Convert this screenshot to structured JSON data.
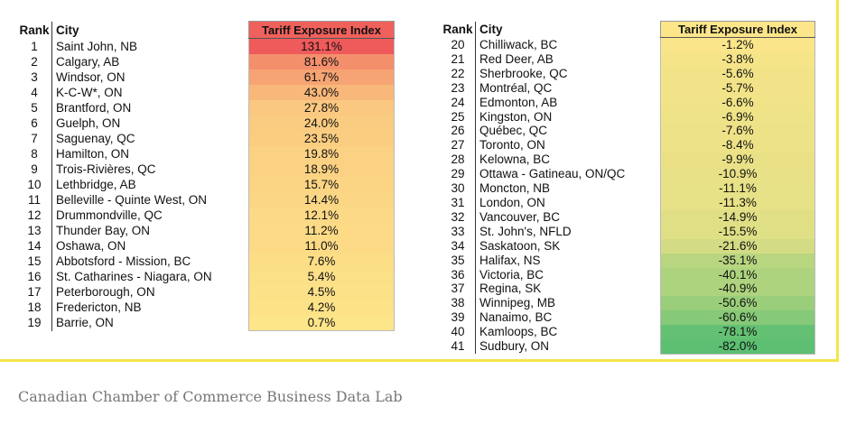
{
  "chart_data": {
    "type": "table",
    "columns": [
      "Rank",
      "City",
      "Tariff Exposure Index"
    ],
    "rows": [
      {
        "rank": "1",
        "city": "Saint John, NB",
        "index": "131.1%",
        "value": 131.1
      },
      {
        "rank": "2",
        "city": "Calgary, AB",
        "index": "81.6%",
        "value": 81.6
      },
      {
        "rank": "3",
        "city": "Windsor, ON",
        "index": "61.7%",
        "value": 61.7
      },
      {
        "rank": "4",
        "city": "K-C-W*, ON",
        "index": "43.0%",
        "value": 43.0
      },
      {
        "rank": "5",
        "city": "Brantford, ON",
        "index": "27.8%",
        "value": 27.8
      },
      {
        "rank": "6",
        "city": "Guelph, ON",
        "index": "24.0%",
        "value": 24.0
      },
      {
        "rank": "7",
        "city": "Saguenay, QC",
        "index": "23.5%",
        "value": 23.5
      },
      {
        "rank": "8",
        "city": "Hamilton, ON",
        "index": "19.8%",
        "value": 19.8
      },
      {
        "rank": "9",
        "city": "Trois-Rivières, QC",
        "index": "18.9%",
        "value": 18.9
      },
      {
        "rank": "10",
        "city": "Lethbridge, AB",
        "index": "15.7%",
        "value": 15.7
      },
      {
        "rank": "11",
        "city": "Belleville - Quinte West, ON",
        "index": "14.4%",
        "value": 14.4
      },
      {
        "rank": "12",
        "city": "Drummondville, QC",
        "index": "12.1%",
        "value": 12.1
      },
      {
        "rank": "13",
        "city": "Thunder Bay, ON",
        "index": "11.2%",
        "value": 11.2
      },
      {
        "rank": "14",
        "city": "Oshawa, ON",
        "index": "11.0%",
        "value": 11.0
      },
      {
        "rank": "15",
        "city": "Abbotsford - Mission, BC",
        "index": "7.6%",
        "value": 7.6
      },
      {
        "rank": "16",
        "city": "St. Catharines - Niagara, ON",
        "index": "5.4%",
        "value": 5.4
      },
      {
        "rank": "17",
        "city": "Peterborough, ON",
        "index": "4.5%",
        "value": 4.5
      },
      {
        "rank": "18",
        "city": "Fredericton, NB",
        "index": "4.2%",
        "value": 4.2
      },
      {
        "rank": "19",
        "city": "Barrie, ON",
        "index": "0.7%",
        "value": 0.7
      },
      {
        "rank": "20",
        "city": "Chilliwack, BC",
        "index": "-1.2%",
        "value": -1.2
      },
      {
        "rank": "21",
        "city": "Red Deer, AB",
        "index": "-3.8%",
        "value": -3.8
      },
      {
        "rank": "22",
        "city": "Sherbrooke, QC",
        "index": "-5.6%",
        "value": -5.6
      },
      {
        "rank": "23",
        "city": "Montréal, QC",
        "index": "-5.7%",
        "value": -5.7
      },
      {
        "rank": "24",
        "city": "Edmonton, AB",
        "index": "-6.6%",
        "value": -6.6
      },
      {
        "rank": "25",
        "city": "Kingston, ON",
        "index": "-6.9%",
        "value": -6.9
      },
      {
        "rank": "26",
        "city": "Québec, QC",
        "index": "-7.6%",
        "value": -7.6
      },
      {
        "rank": "27",
        "city": "Toronto, ON",
        "index": "-8.4%",
        "value": -8.4
      },
      {
        "rank": "28",
        "city": "Kelowna, BC",
        "index": "-9.9%",
        "value": -9.9
      },
      {
        "rank": "29",
        "city": "Ottawa - Gatineau, ON/QC",
        "index": "-10.9%",
        "value": -10.9
      },
      {
        "rank": "30",
        "city": "Moncton, NB",
        "index": "-11.1%",
        "value": -11.1
      },
      {
        "rank": "31",
        "city": "London, ON",
        "index": "-11.3%",
        "value": -11.3
      },
      {
        "rank": "32",
        "city": "Vancouver, BC",
        "index": "-14.9%",
        "value": -14.9
      },
      {
        "rank": "33",
        "city": "St. John's, NFLD",
        "index": "-15.5%",
        "value": -15.5
      },
      {
        "rank": "34",
        "city": "Saskatoon, SK",
        "index": "-21.6%",
        "value": -21.6
      },
      {
        "rank": "35",
        "city": "Halifax, NS",
        "index": "-35.1%",
        "value": -35.1
      },
      {
        "rank": "36",
        "city": "Victoria, BC",
        "index": "-40.1%",
        "value": -40.1
      },
      {
        "rank": "37",
        "city": "Regina, SK",
        "index": "-40.9%",
        "value": -40.9
      },
      {
        "rank": "38",
        "city": "Winnipeg, MB",
        "index": "-50.6%",
        "value": -50.6
      },
      {
        "rank": "39",
        "city": "Nanaimo, BC",
        "index": "-60.6%",
        "value": -60.6
      },
      {
        "rank": "40",
        "city": "Kamloops, BC",
        "index": "-78.1%",
        "value": -78.1
      },
      {
        "rank": "41",
        "city": "Sudbury, ON",
        "index": "-82.0%",
        "value": -82.0
      }
    ],
    "split_after_row": 19,
    "color_scale": {
      "max_color": "#ef5a5a",
      "mid_color": "#fde68a",
      "min_color": "#5cbf72"
    },
    "frame_color": "#f2e64a"
  },
  "caption": "Canadian Chamber of Commerce Business Data Lab"
}
